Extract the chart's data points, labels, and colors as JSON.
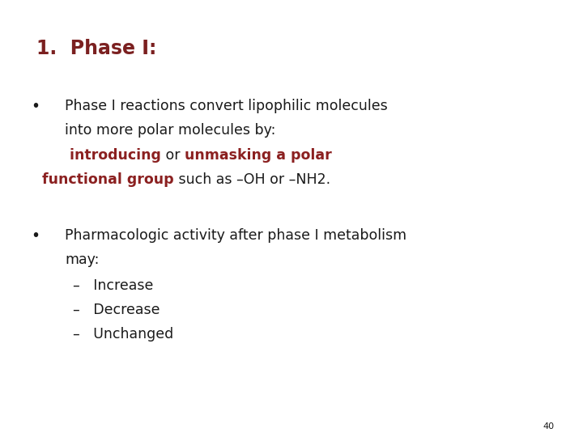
{
  "background_color": "#ffffff",
  "title": "1.  Phase I:",
  "title_color": "#7B2020",
  "title_fontsize": 17,
  "body_color": "#1a1a1a",
  "body_fontsize": 12.5,
  "highlight_color": "#8B2020",
  "page_number": "40",
  "bullet1_line1": "Phase I reactions convert lipophilic molecules",
  "bullet1_line2": "into more polar molecules by:",
  "bullet1_line3_parts": [
    {
      "text": "   introducing",
      "bold": true,
      "color": "#8B2020"
    },
    {
      "text": " or ",
      "bold": false,
      "color": "#1a1a1a"
    },
    {
      "text": "unmasking a polar",
      "bold": true,
      "color": "#8B2020"
    }
  ],
  "bullet1_line4_parts": [
    {
      "text": "functional group",
      "bold": true,
      "color": "#8B2020"
    },
    {
      "text": " such as –OH or –NH2.",
      "bold": false,
      "color": "#1a1a1a"
    }
  ],
  "bullet2_line1": "Pharmacologic activity after phase I metabolism",
  "bullet2_line2": "may:",
  "sub_items": [
    "–   Increase",
    "–   Decrease",
    "–   Unchanged"
  ]
}
